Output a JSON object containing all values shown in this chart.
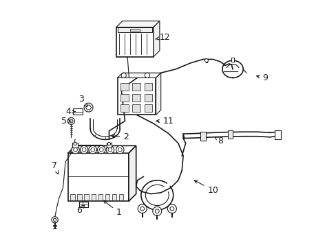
{
  "bg_color": "#ffffff",
  "line_color": "#1a1a1a",
  "fig_width": 4.89,
  "fig_height": 3.6,
  "dpi": 100,
  "label_fs": 9,
  "lw_thick": 1.8,
  "lw_med": 1.2,
  "lw_thin": 0.8,
  "labels": {
    "1": [
      0.3,
      0.14,
      0.23,
      0.195
    ],
    "2": [
      0.33,
      0.445,
      0.26,
      0.45
    ],
    "3": [
      0.148,
      0.6,
      0.175,
      0.565
    ],
    "4": [
      0.098,
      0.548,
      0.135,
      0.548
    ],
    "5": [
      0.08,
      0.51,
      0.11,
      0.51
    ],
    "6": [
      0.14,
      0.15,
      0.165,
      0.172
    ],
    "7": [
      0.04,
      0.33,
      0.06,
      0.285
    ],
    "8": [
      0.71,
      0.43,
      0.685,
      0.448
    ],
    "9": [
      0.89,
      0.685,
      0.845,
      0.695
    ],
    "10": [
      0.68,
      0.23,
      0.595,
      0.275
    ],
    "11": [
      0.5,
      0.51,
      0.44,
      0.51
    ],
    "12": [
      0.485,
      0.85,
      0.44,
      0.84
    ]
  }
}
